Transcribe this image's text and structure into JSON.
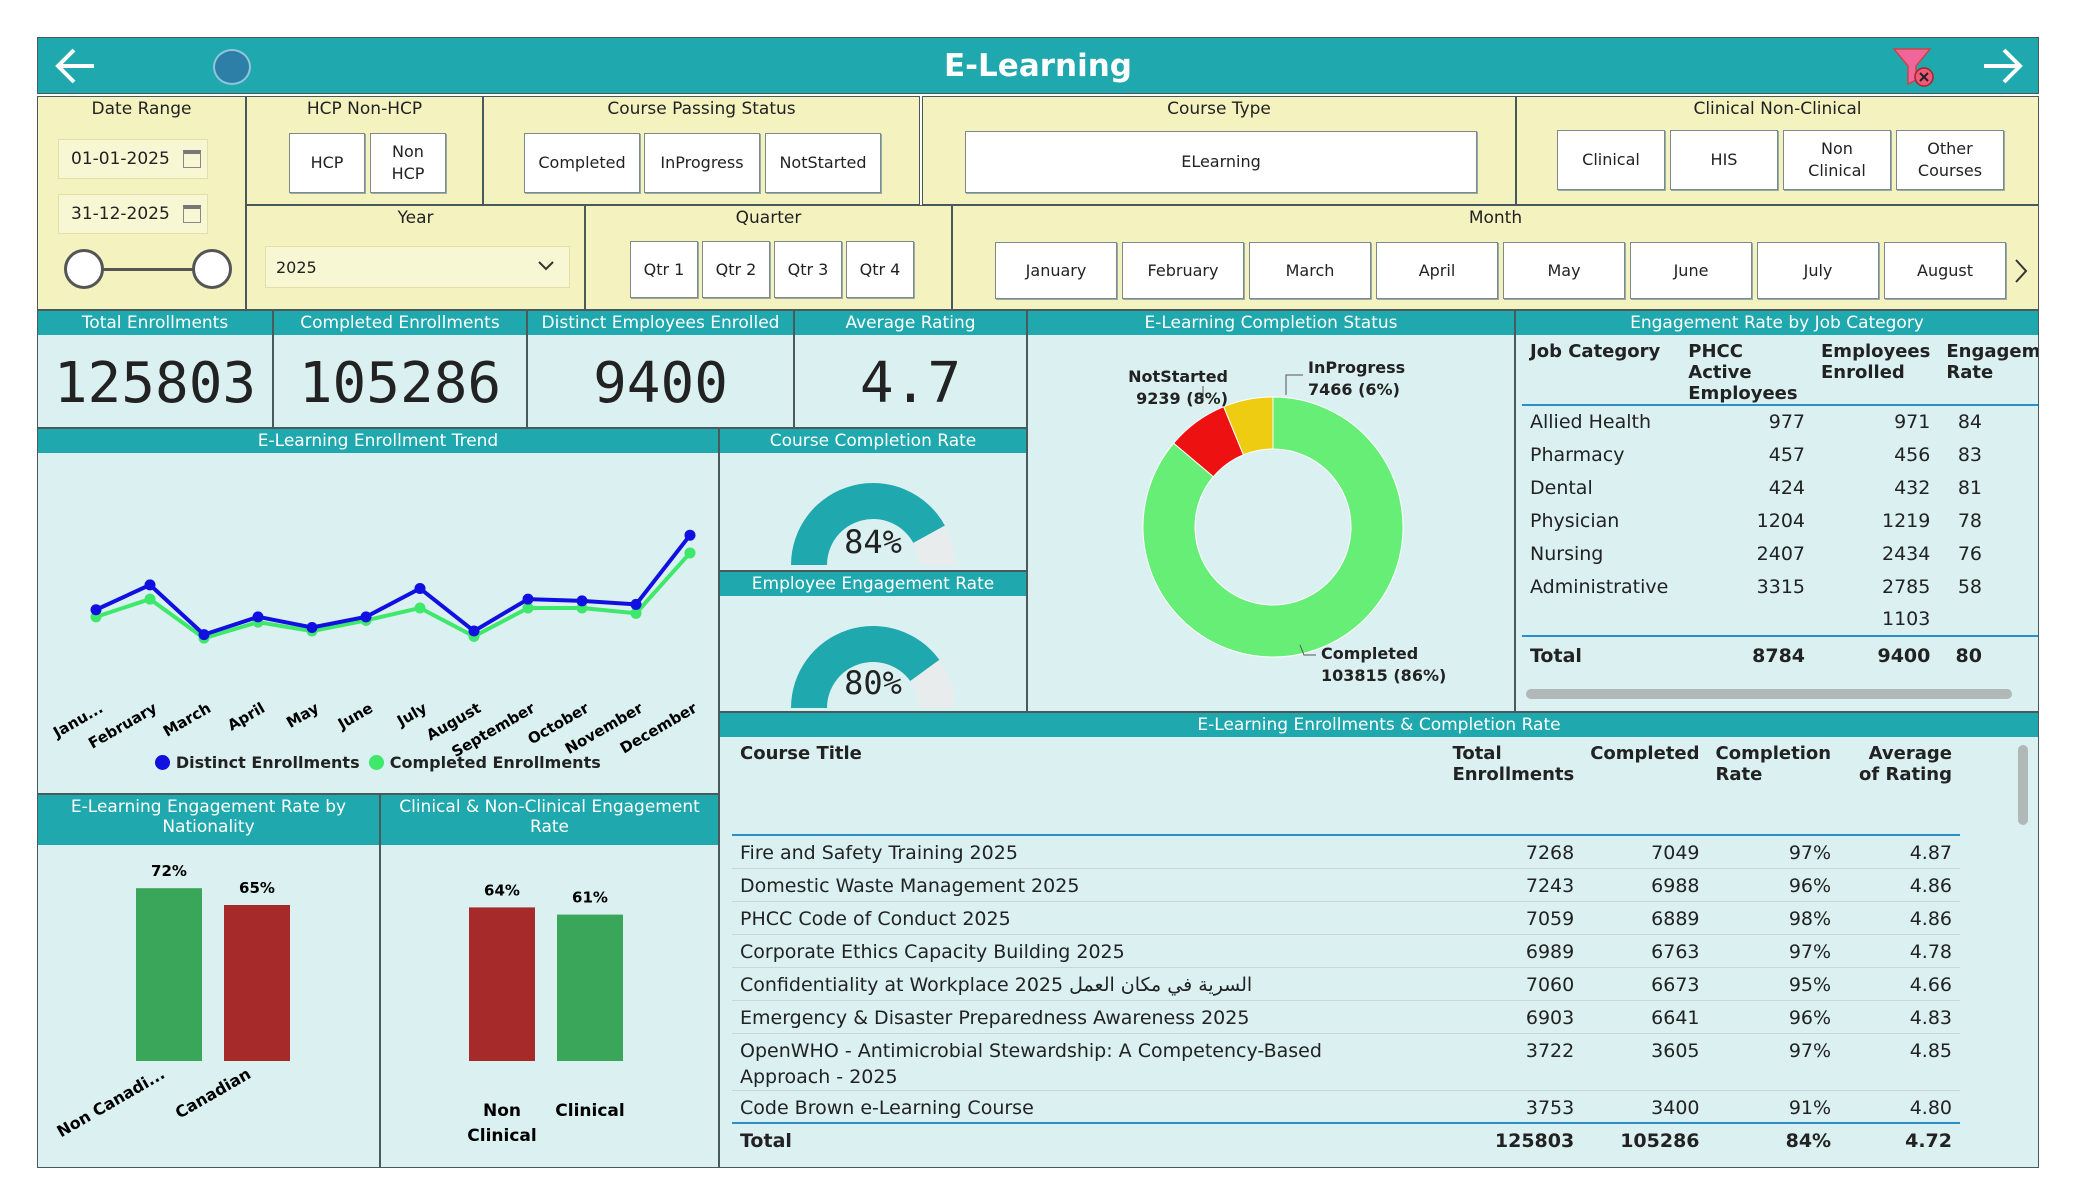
{
  "title": "E-Learning",
  "filters": {
    "date_range": {
      "label": "Date Range",
      "start": "01-01-2025",
      "end": "31-12-2025"
    },
    "hcp": {
      "label": "HCP Non-HCP",
      "options": [
        "HCP",
        "Non HCP"
      ]
    },
    "passing": {
      "label": "Course Passing Status",
      "options": [
        "Completed",
        "InProgress",
        "NotStarted"
      ]
    },
    "course_type": {
      "label": "Course Type",
      "options": [
        "ELearning"
      ]
    },
    "clinical": {
      "label": "Clinical Non-Clinical",
      "options": [
        "Clinical",
        "HIS",
        "Non Clinical",
        "Other Courses"
      ]
    },
    "year": {
      "label": "Year",
      "value": "2025"
    },
    "quarter": {
      "label": "Quarter",
      "options": [
        "Qtr 1",
        "Qtr 2",
        "Qtr 3",
        "Qtr 4"
      ]
    },
    "month": {
      "label": "Month",
      "options": [
        "January",
        "February",
        "March",
        "April",
        "May",
        "June",
        "July",
        "August"
      ]
    }
  },
  "kpis": {
    "total_enrollments": {
      "label": "Total Enrollments",
      "value": "125803"
    },
    "completed_enrollments": {
      "label": "Completed Enrollments",
      "value": "105286"
    },
    "distinct_employees": {
      "label": "Distinct Employees Enrolled",
      "value": "9400"
    },
    "average_rating": {
      "label": "Average Rating",
      "value": "4.7"
    }
  },
  "trend": {
    "title": "E-Learning Enrollment Trend",
    "legend": [
      "Distinct Enrollments",
      "Completed Enrollments"
    ],
    "colors": [
      "#1010e0",
      "#3ee86a"
    ]
  },
  "gauges": {
    "course_completion": {
      "title": "Course Completion Rate",
      "value": 84,
      "label": "84%"
    },
    "engagement": {
      "title": "Employee Engagement Rate",
      "value": 80,
      "label": "80%"
    }
  },
  "donut": {
    "title": "E-Learning Completion Status",
    "labels": {
      "notstarted": [
        "NotStarted",
        "9239 (8%)"
      ],
      "inprogress": [
        "InProgress",
        "7466 (6%)"
      ],
      "completed": [
        "Completed",
        "103815 (86%)"
      ]
    }
  },
  "job_table": {
    "title": "Engagement Rate by Job Category",
    "headers": [
      "Job Category",
      "PHCC Active Employees",
      "Employees Enrolled",
      "Engagement Rate"
    ],
    "rows": [
      [
        "Allied Health",
        "977",
        "971",
        "84"
      ],
      [
        "Pharmacy",
        "457",
        "456",
        "83"
      ],
      [
        "Dental",
        "424",
        "432",
        "81"
      ],
      [
        "Physician",
        "1204",
        "1219",
        "78"
      ],
      [
        "Nursing",
        "2407",
        "2434",
        "76"
      ],
      [
        "Administrative",
        "3315",
        "2785",
        "58"
      ],
      [
        "",
        "",
        "1103",
        ""
      ]
    ],
    "total": [
      "Total",
      "8784",
      "9400",
      "80"
    ]
  },
  "nationality": {
    "title": "E-Learning Engagement Rate by Nationality"
  },
  "clinical_rate": {
    "title": "Clinical & Non-Clinical Engagement Rate"
  },
  "course_table": {
    "title": "E-Learning Enrollments & Completion Rate",
    "headers": [
      "Course Title",
      "Total Enrollments",
      "Completed",
      "Completion Rate",
      "Average of Rating"
    ],
    "rows": [
      [
        "Fire and Safety Training 2025",
        "7268",
        "7049",
        "97%",
        "4.87"
      ],
      [
        "Domestic Waste Management 2025",
        "7243",
        "6988",
        "96%",
        "4.86"
      ],
      [
        "PHCC Code of Conduct 2025",
        "7059",
        "6889",
        "98%",
        "4.86"
      ],
      [
        "Corporate Ethics Capacity Building 2025",
        "6989",
        "6763",
        "97%",
        "4.78"
      ],
      [
        "Confidentiality at Workplace 2025 السرية في مكان العمل",
        "7060",
        "6673",
        "95%",
        "4.66"
      ],
      [
        "Emergency & Disaster Preparedness Awareness 2025",
        "6903",
        "6641",
        "96%",
        "4.83"
      ],
      [
        "OpenWHO - Antimicrobial Stewardship: A Competency-Based Approach - 2025",
        "3722",
        "3605",
        "97%",
        "4.85"
      ],
      [
        "Code Brown e-Learning Course",
        "3753",
        "3400",
        "91%",
        "4.80"
      ]
    ],
    "total": [
      "Total",
      "125803",
      "105286",
      "84%",
      "4.72"
    ]
  },
  "chart_data": [
    {
      "type": "line",
      "title": "E-Learning Enrollment Trend",
      "categories": [
        "January",
        "February",
        "March",
        "April",
        "May",
        "June",
        "July",
        "August",
        "September",
        "October",
        "November",
        "December"
      ],
      "tick_labels": [
        "Janu...",
        "February",
        "March",
        "April",
        "May",
        "June",
        "July",
        "August",
        "September",
        "October",
        "November",
        "December"
      ],
      "series": [
        {
          "name": "Distinct Enrollments",
          "values": [
            5000,
            5700,
            4300,
            4800,
            4500,
            4800,
            5600,
            4400,
            5300,
            5250,
            5150,
            7100
          ]
        },
        {
          "name": "Completed Enrollments",
          "values": [
            4800,
            5300,
            4200,
            4650,
            4400,
            4700,
            5050,
            4250,
            5050,
            5050,
            4900,
            6600
          ]
        }
      ],
      "ylim": [
        3500,
        7500
      ],
      "legend": "bottom"
    },
    {
      "type": "pie",
      "title": "E-Learning Completion Status",
      "categories": [
        "Completed",
        "NotStarted",
        "InProgress"
      ],
      "values": [
        103815,
        9239,
        7466
      ],
      "colors": [
        "#66ee77",
        "#ee1111",
        "#eecc11"
      ]
    },
    {
      "type": "bar",
      "title": "E-Learning Engagement Rate by Nationality",
      "categories": [
        "Non Canadi...",
        "Canadian"
      ],
      "values": [
        72,
        65
      ],
      "value_labels": [
        "72%",
        "65%"
      ],
      "colors": [
        "#3aa65a",
        "#a72a2a"
      ],
      "ylim": [
        0,
        100
      ]
    },
    {
      "type": "bar",
      "title": "Clinical & Non-Clinical Engagement Rate",
      "categories": [
        "Non Clinical",
        "Clinical"
      ],
      "values": [
        64,
        61
      ],
      "value_labels": [
        "64%",
        "61%"
      ],
      "colors": [
        "#a72a2a",
        "#3aa65a"
      ],
      "ylim": [
        0,
        100
      ]
    }
  ]
}
